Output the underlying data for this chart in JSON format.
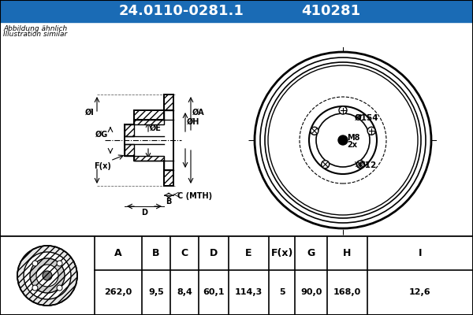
{
  "title_part": "24.0110-0281.1",
  "title_ref": "410281",
  "title_bg": "#1a6bb5",
  "subtitle_line1": "Abbildung ähnlich",
  "subtitle_line2": "Illustration similar",
  "table_headers": [
    "A",
    "B",
    "C",
    "D",
    "E",
    "F(x)",
    "G",
    "H",
    "I"
  ],
  "table_values": [
    "262,0",
    "9,5",
    "8,4",
    "60,1",
    "114,3",
    "5",
    "90,0",
    "168,0",
    "12,6"
  ],
  "line_color": "#000000",
  "title_fontsize": 13,
  "sub_fontsize": 6.5
}
